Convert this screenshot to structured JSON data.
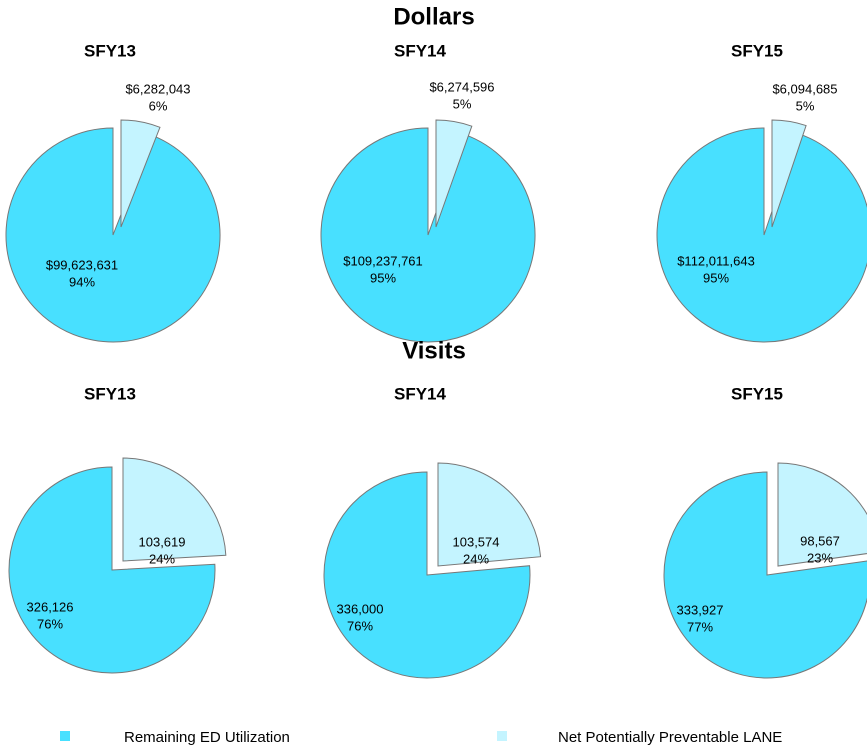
{
  "chart_data": [
    {
      "type": "pie",
      "title": "Dollars",
      "pies": [
        {
          "title": "SFY13",
          "values": [
            99623631,
            6282043
          ],
          "value_labels": [
            "$99,623,631",
            "$6,282,043"
          ],
          "percents": [
            94,
            6
          ],
          "percent_labels": [
            "94%",
            "6%"
          ]
        },
        {
          "title": "SFY14",
          "values": [
            109237761,
            6274596
          ],
          "value_labels": [
            "$109,237,761",
            "$6,274,596"
          ],
          "percents": [
            95,
            5
          ],
          "percent_labels": [
            "95%",
            "5%"
          ]
        },
        {
          "title": "SFY15",
          "values": [
            112011643,
            6094685
          ],
          "value_labels": [
            "$112,011,643",
            "$6,094,685"
          ],
          "percents": [
            95,
            5
          ],
          "percent_labels": [
            "95%",
            "5%"
          ]
        }
      ]
    },
    {
      "type": "pie",
      "title": "Visits",
      "pies": [
        {
          "title": "SFY13",
          "values": [
            326126,
            103619
          ],
          "value_labels": [
            "326,126",
            "103,619"
          ],
          "percents": [
            76,
            24
          ],
          "percent_labels": [
            "76%",
            "24%"
          ]
        },
        {
          "title": "SFY14",
          "values": [
            336000,
            103574
          ],
          "value_labels": [
            "336,000",
            "103,574"
          ],
          "percents": [
            76,
            24
          ],
          "percent_labels": [
            "76%",
            "24%"
          ]
        },
        {
          "title": "SFY15",
          "values": [
            333927,
            98567
          ],
          "value_labels": [
            "333,927",
            "98,567"
          ],
          "percents": [
            77,
            23
          ],
          "percent_labels": [
            "77%",
            "23%"
          ]
        }
      ]
    }
  ],
  "legend": {
    "categories": [
      "Remaining ED Utilization",
      "Net Potentially Preventable LANE"
    ],
    "colors": [
      "#48e0ff",
      "#c4f4ff"
    ]
  }
}
